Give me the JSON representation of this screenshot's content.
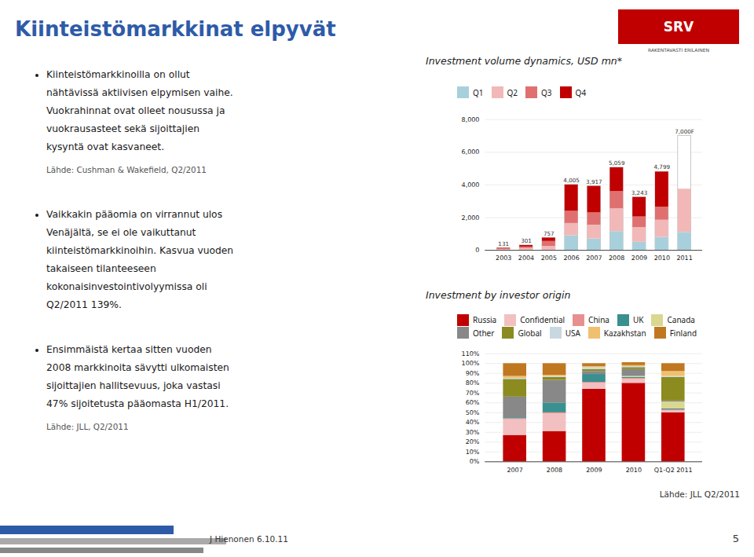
{
  "header": {
    "title": "Kiinteistömarkkinat elpyvät",
    "logo": "SRV",
    "logo_subtitle": "RAKENTAVASTI ERILAINEN"
  },
  "bullets": [
    {
      "lines": [
        "Kiinteistömarkkinoilla on ollut",
        "nähtävissä aktiivisen elpymisen vaihe.",
        "Vuokrahinnat ovat olleet nousussa ja",
        "vuokrausasteet sekä sijoittajien",
        "kysyntä ovat kasvaneet."
      ],
      "source": "Lähde: Cushman & Wakefield, Q2/2011"
    },
    {
      "lines": [
        "Vaikkakin pääomia on virrannut ulos",
        "Venäjältä, se ei ole vaikuttanut",
        "kiinteistömarkkinoihin. Kasvua vuoden",
        "takaiseen tilanteeseen",
        "kokonaisinvestointivolyymissa oli",
        "Q2/2011 139%."
      ]
    },
    {
      "lines": [
        "Ensimmäistä kertaa sitten vuoden",
        "2008 markkinoita sävytti ulkomaisten",
        "sijoittajien hallitsevuus, joka vastasi",
        "47% sijoitetusta pääomasta H1/2011."
      ],
      "source": "Lähde: JLL, Q2/2011"
    }
  ],
  "footer": {
    "text": "J Hienonen 6.10.11",
    "page": "5"
  },
  "chart_data": [
    {
      "type": "bar",
      "stacked": true,
      "title": "Investment volume dynamics, USD mn*",
      "categories": [
        "2003",
        "2004",
        "2005",
        "2006",
        "2007",
        "2008",
        "2009",
        "2010",
        "2011"
      ],
      "series": [
        {
          "name": "Q1",
          "color": "#A8D0DC",
          "values": [
            0,
            0,
            0,
            900,
            700,
            1150,
            500,
            800,
            1100
          ]
        },
        {
          "name": "Q2",
          "color": "#F2B8B8",
          "values": [
            60,
            120,
            250,
            750,
            850,
            1400,
            900,
            1050,
            2650
          ]
        },
        {
          "name": "Q3",
          "color": "#E07070",
          "values": [
            40,
            90,
            300,
            750,
            750,
            1050,
            650,
            800,
            0
          ]
        },
        {
          "name": "Q4",
          "color": "#C00000",
          "values": [
            31,
            91,
            207,
            1605,
            1617,
            1459,
            1193,
            2149,
            0
          ]
        }
      ],
      "totals": [
        131,
        301,
        757,
        4005,
        3917,
        5059,
        3243,
        4799,
        7000
      ],
      "total_labels": [
        "131",
        "301",
        "757",
        "4,005",
        "3,917",
        "5,059",
        "3,243",
        "4,799",
        "7,000F"
      ],
      "ylim": [
        0,
        8000
      ],
      "yticks": [
        0,
        {
          "value": 2000,
          "label": "2,000"
        },
        {
          "value": 4000,
          "label": "4,000"
        },
        {
          "value": 6000,
          "label": "6,000"
        },
        {
          "value": 8000,
          "label": "8,000"
        }
      ],
      "grid": true,
      "legend": "upper left"
    },
    {
      "type": "bar",
      "stacked": true,
      "title": "Investment by investor origin",
      "categories": [
        "2007",
        "2008",
        "2009",
        "2010",
        "Q1-Q2 2011"
      ],
      "series": [
        {
          "name": "Russia",
          "color": "#C00000",
          "values": [
            0.27,
            0.31,
            0.74,
            0.8,
            0.5
          ]
        },
        {
          "name": "Confidential",
          "color": "#F2C0C0",
          "values": [
            0.16,
            0.18,
            0.06,
            0.04,
            0.02
          ]
        },
        {
          "name": "China",
          "color": "#E89090",
          "values": [
            0.01,
            0.01,
            0.01,
            0.01,
            0.01
          ]
        },
        {
          "name": "UK",
          "color": "#3A8F8F",
          "values": [
            0.01,
            0.1,
            0.08,
            0.01,
            0.01
          ]
        },
        {
          "name": "Canada",
          "color": "#D8D890",
          "values": [
            0.0,
            0.0,
            0.0,
            0.01,
            0.07
          ]
        },
        {
          "name": "Other",
          "color": "#888888",
          "values": [
            0.21,
            0.23,
            0.03,
            0.07,
            0.01
          ]
        },
        {
          "name": "Global",
          "color": "#8B8B20",
          "values": [
            0.18,
            0.03,
            0.02,
            0.02,
            0.24
          ]
        },
        {
          "name": "USA",
          "color": "#C8D8E0",
          "values": [
            0.01,
            0.01,
            0.02,
            0.01,
            0.01
          ]
        },
        {
          "name": "Kazakhstan",
          "color": "#F0C070",
          "values": [
            0.02,
            0.01,
            0.01,
            0.01,
            0.05
          ]
        },
        {
          "name": "Finland",
          "color": "#C07820",
          "values": [
            0.13,
            0.12,
            0.03,
            0.03,
            0.08
          ]
        }
      ],
      "ylim": [
        0,
        1.1
      ],
      "yticks": [
        {
          "value": 0,
          "label": "0%"
        },
        {
          "value": 0.1,
          "label": "10%"
        },
        {
          "value": 0.2,
          "label": "20%"
        },
        {
          "value": 0.3,
          "label": "30%"
        },
        {
          "value": 0.4,
          "label": "40%"
        },
        {
          "value": 0.5,
          "label": "50%"
        },
        {
          "value": 0.6,
          "label": "60%"
        },
        {
          "value": 0.7,
          "label": "70%"
        },
        {
          "value": 0.8,
          "label": "80%"
        },
        {
          "value": 0.9,
          "label": "90%"
        },
        {
          "value": 1,
          "label": "100%"
        },
        {
          "value": 1.1,
          "label": "110%"
        }
      ],
      "grid": true,
      "legend": "upper left",
      "annotations": [
        "Lähde: JLL Q2/2011"
      ]
    }
  ]
}
